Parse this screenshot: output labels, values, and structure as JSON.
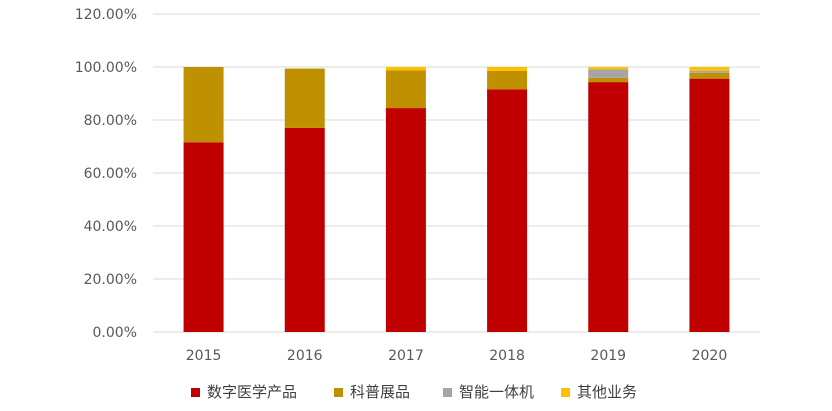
{
  "chart_data": {
    "type": "bar",
    "stacked": true,
    "title": "",
    "xlabel": "",
    "ylabel": "",
    "categories": [
      "2015",
      "2016",
      "2017",
      "2018",
      "2019",
      "2020"
    ],
    "ylim": [
      0,
      120
    ],
    "yticks": [
      "0.00%",
      "20.00%",
      "40.00%",
      "60.00%",
      "80.00%",
      "100.00%",
      "120.00%"
    ],
    "grid": true,
    "legend_position": "bottom",
    "series": [
      {
        "name": "数字医学产品",
        "color": "#C00000",
        "values": [
          71.6,
          77.0,
          84.5,
          91.6,
          94.3,
          95.6
        ]
      },
      {
        "name": "科普展品",
        "color": "#BF9000",
        "values": [
          28.4,
          22.4,
          14.2,
          6.9,
          1.6,
          2.2
        ]
      },
      {
        "name": "智能一体机",
        "color": "#A5A5A5",
        "values": [
          0.0,
          0.0,
          0.0,
          0.0,
          3.2,
          0.8
        ]
      },
      {
        "name": "其他业务",
        "color": "#FFC000",
        "values": [
          0.0,
          0.0,
          1.3,
          1.5,
          0.9,
          1.4
        ]
      }
    ]
  }
}
